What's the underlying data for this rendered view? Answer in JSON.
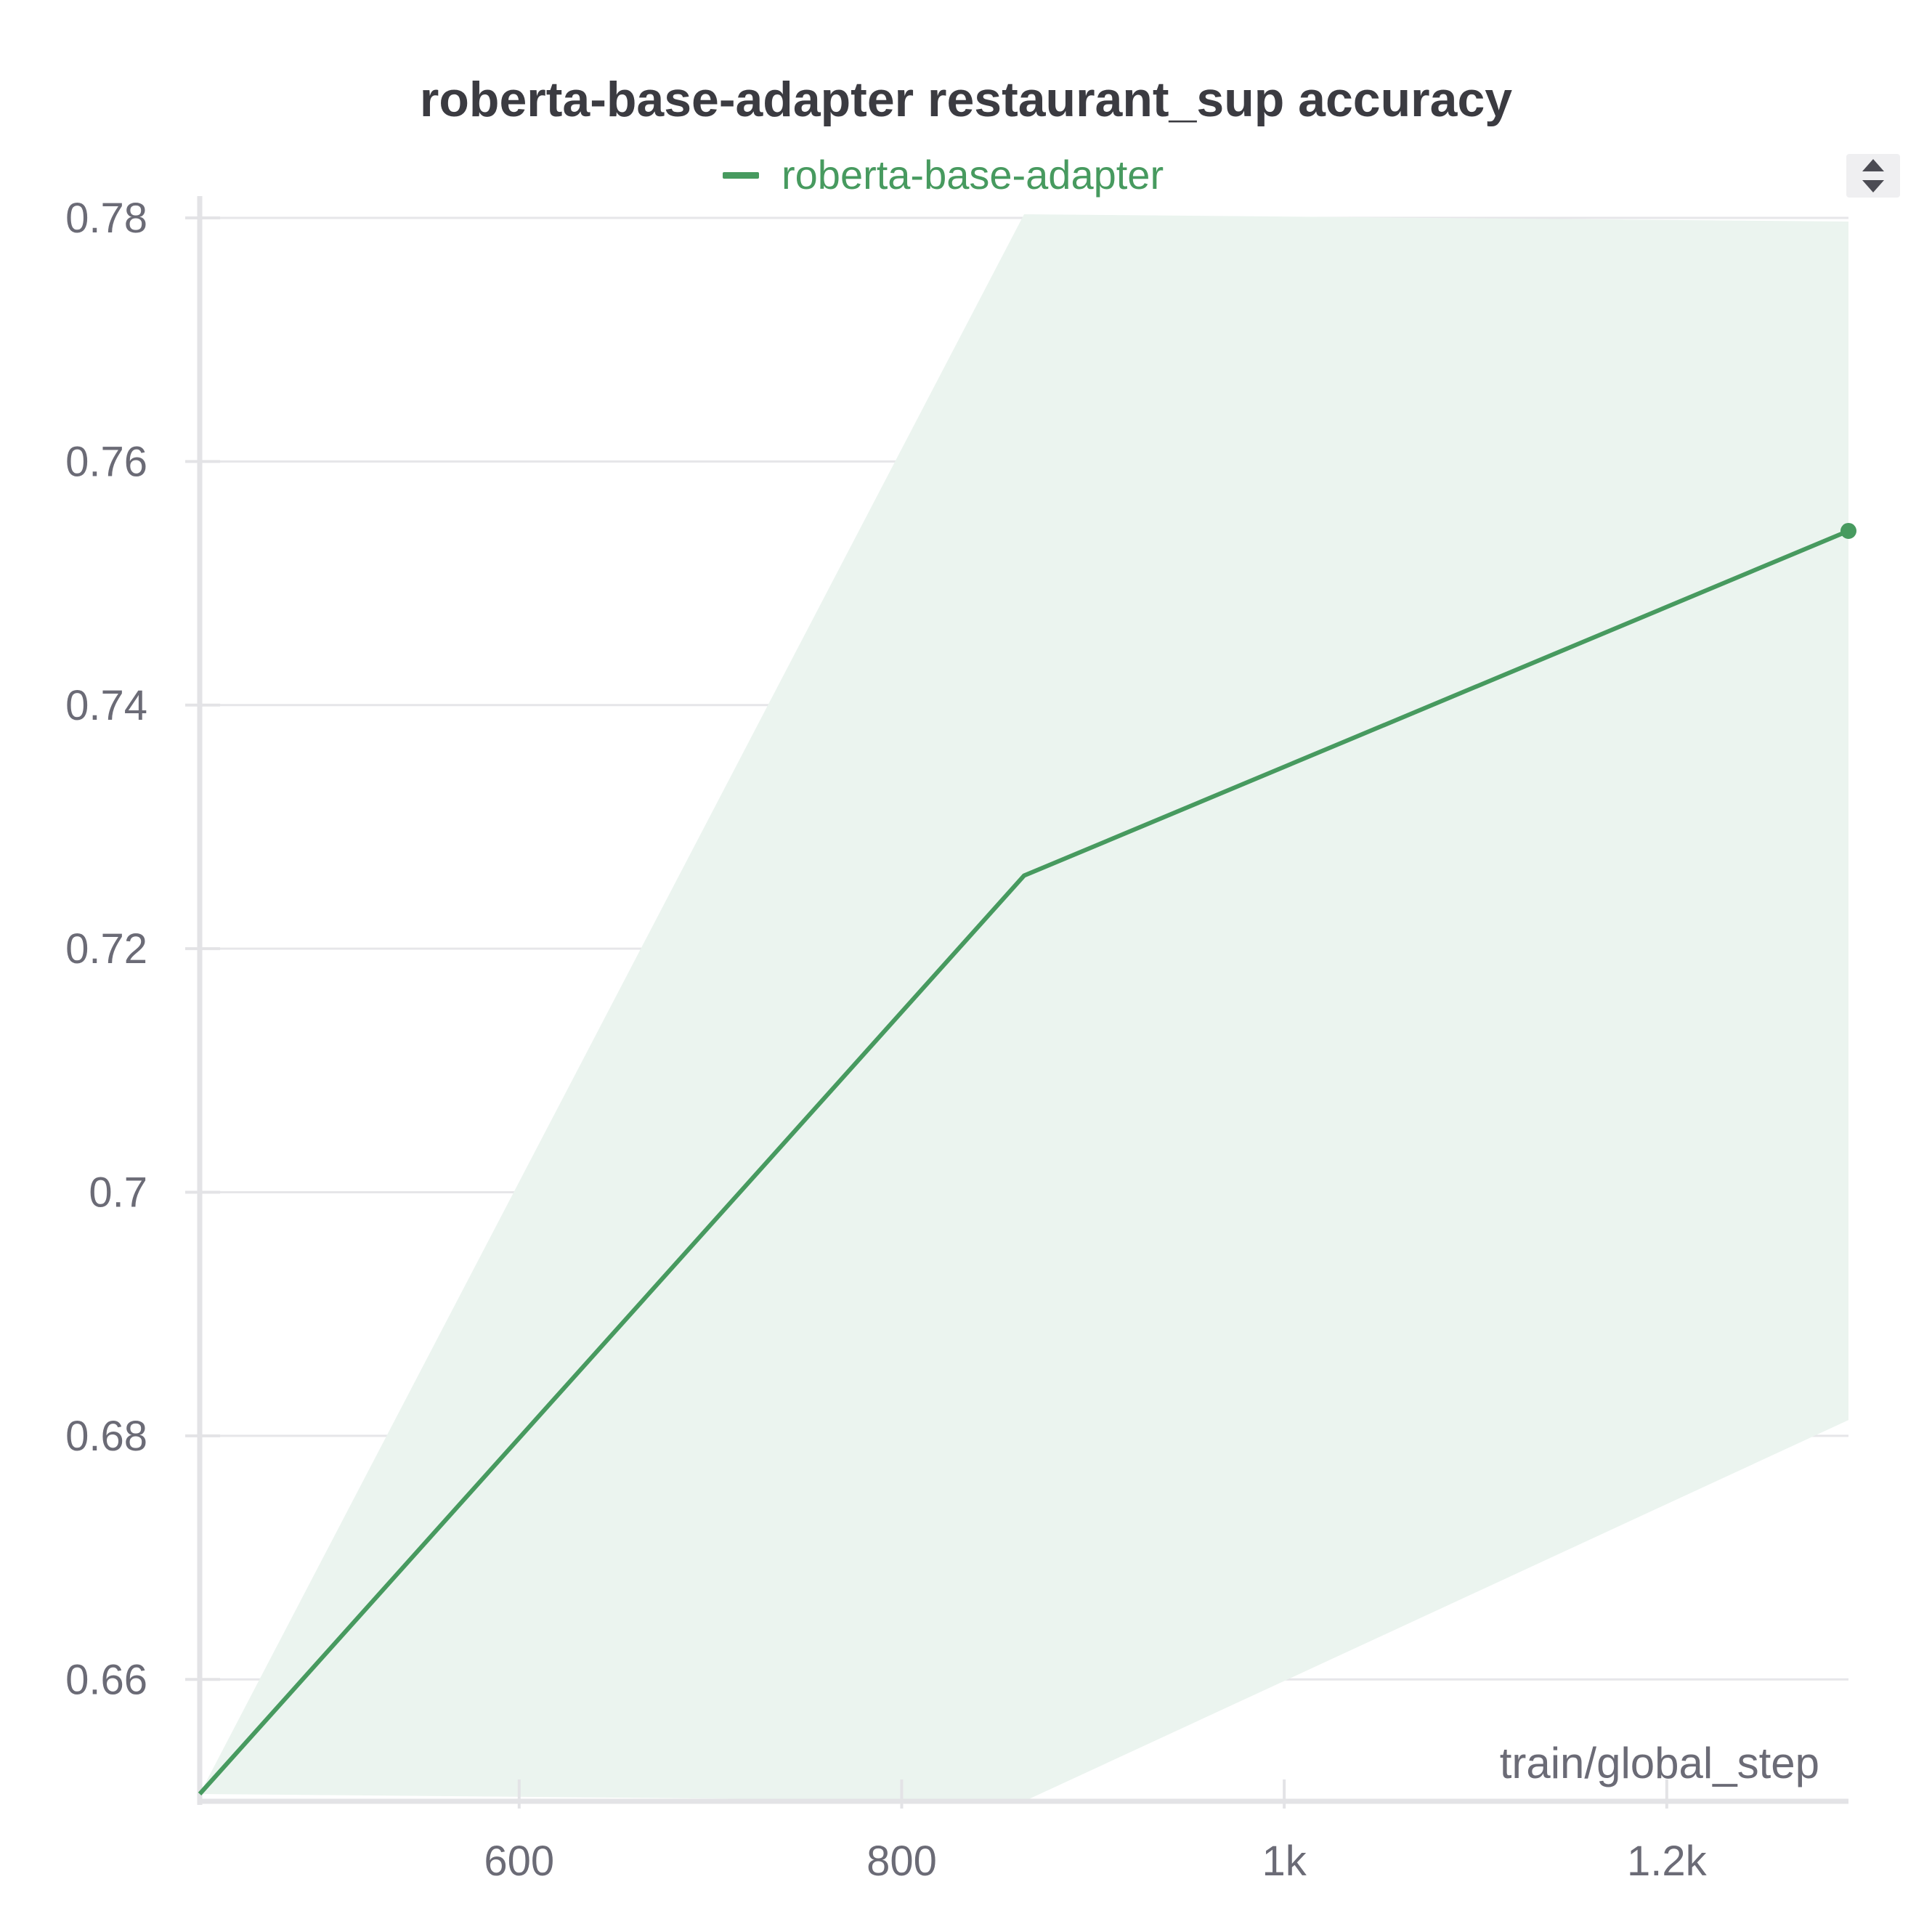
{
  "chart_data": {
    "type": "line",
    "title": "roberta-base-adapter restaurant_sup accuracy",
    "xlabel": "train/global_step",
    "ylabel": "",
    "xlim": [
      433,
      1295
    ],
    "ylim": [
      0.65,
      0.78
    ],
    "x_ticks": [
      600,
      800,
      1000,
      1200
    ],
    "x_tick_labels": [
      "600",
      "800",
      "1k",
      "1.2k"
    ],
    "y_ticks": [
      0.66,
      0.68,
      0.7,
      0.72,
      0.74,
      0.76,
      0.78
    ],
    "y_tick_labels": [
      "0.66",
      "0.68",
      "0.7",
      "0.72",
      "0.74",
      "0.76",
      "0.78"
    ],
    "grid": true,
    "legend_position": "top-center",
    "series": [
      {
        "name": "roberta-base-adapter",
        "color": "#479a5f",
        "band_color": "#ebf4ef",
        "x": [
          433,
          864,
          1295
        ],
        "values": [
          0.6506,
          0.726,
          0.7543
        ],
        "band_upper": [
          0.6506,
          0.7803,
          0.7797
        ],
        "band_lower": [
          0.6506,
          0.65,
          0.6813
        ]
      }
    ]
  },
  "toolbar": {
    "sort_icon": "sort-up-down-icon"
  }
}
